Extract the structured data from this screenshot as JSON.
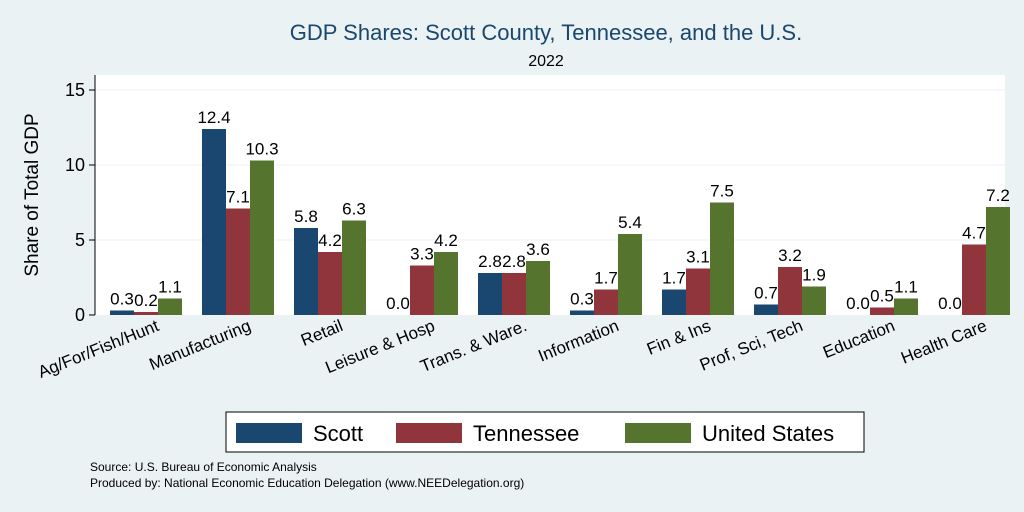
{
  "chart_data": {
    "type": "bar",
    "title": "GDP Shares: Scott County, Tennessee, and the U.S.",
    "subtitle": "2022",
    "ylabel": "Share of Total GDP",
    "xlabel": "",
    "ylim": [
      0,
      15
    ],
    "yticks": [
      0,
      5,
      10,
      15
    ],
    "grid": true,
    "legend_position": "bottom",
    "categories": [
      "Ag/For/Fish/Hunt",
      "Manufacturing",
      "Retail",
      "Leisure & Hosp",
      "Trans. & Ware.",
      "Information",
      "Fin & Ins",
      "Prof, Sci, Tech",
      "Education",
      "Health Care"
    ],
    "series": [
      {
        "name": "Scott",
        "color": "#1a476f",
        "values": [
          0.3,
          12.4,
          5.8,
          0.0,
          2.8,
          0.3,
          1.7,
          0.7,
          0.0,
          0.0
        ]
      },
      {
        "name": "Tennessee",
        "color": "#90353b",
        "values": [
          0.2,
          7.1,
          4.2,
          3.3,
          2.8,
          1.7,
          3.1,
          3.2,
          0.5,
          4.7
        ]
      },
      {
        "name": "United States",
        "color": "#55752f",
        "values": [
          1.1,
          10.3,
          6.3,
          4.2,
          3.6,
          5.4,
          7.5,
          1.9,
          1.1,
          7.2
        ]
      }
    ]
  },
  "notes": {
    "source": "Source: U.S. Bureau of Economic Analysis",
    "produced_by": "Produced by: National Economic Education Delegation (www.NEEDelegation.org)"
  }
}
